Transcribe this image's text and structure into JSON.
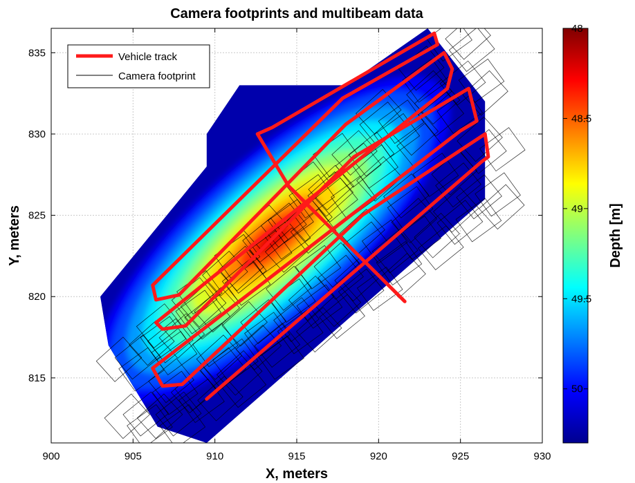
{
  "chart_data": {
    "type": "heatmap",
    "title": "Camera footprints and multibeam data",
    "xlabel": "X, meters",
    "ylabel": "Y, meters",
    "xlim": [
      900,
      930
    ],
    "ylim": [
      811,
      836.5
    ],
    "xticks": [
      900,
      905,
      910,
      915,
      920,
      925,
      930
    ],
    "yticks": [
      815,
      820,
      825,
      830,
      835
    ],
    "grid": true,
    "legend": {
      "position": "top-left",
      "entries": [
        "Vehicle track",
        "Camera footprint"
      ]
    },
    "colorbar": {
      "label": "Depth [m]",
      "range": [
        48,
        50.3
      ],
      "reversed": true,
      "ticks": [
        "48",
        "48.5",
        "49",
        "49.5",
        "50"
      ],
      "colormap": "jet"
    },
    "survey_area": {
      "outline": [
        [
          906.5,
          812
        ],
        [
          909.5,
          811
        ],
        [
          926.5,
          826
        ],
        [
          926.5,
          832
        ],
        [
          923,
          836.5
        ],
        [
          918,
          833
        ],
        [
          911.5,
          833
        ],
        [
          909.5,
          830
        ],
        [
          909.5,
          828
        ],
        [
          903,
          820
        ],
        [
          903.5,
          817
        ]
      ],
      "deepest_point": [
        913.5,
        823.5
      ],
      "deepest_depth": 48.05,
      "edge_depth": 50.2
    },
    "series": [
      {
        "name": "Vehicle track",
        "color": "#ff1a1a",
        "points": [
          [
            921.6,
            819.7
          ],
          [
            914.5,
            826.8
          ],
          [
            912.6,
            830.0
          ],
          [
            913.5,
            830.4
          ],
          [
            923.4,
            836.2
          ],
          [
            923.6,
            835.5
          ],
          [
            917.8,
            832.2
          ],
          [
            906.2,
            820.7
          ],
          [
            906.4,
            819.8
          ],
          [
            907.8,
            820.1
          ],
          [
            918.0,
            830.6
          ],
          [
            924.0,
            835.0
          ],
          [
            924.5,
            834.0
          ],
          [
            924.2,
            832.8
          ],
          [
            906.4,
            818.4
          ],
          [
            906.8,
            818.0
          ],
          [
            908.2,
            818.2
          ],
          [
            918.5,
            828.6
          ],
          [
            925.5,
            832.8
          ],
          [
            926.0,
            830.8
          ],
          [
            925.0,
            830.2
          ],
          [
            906.2,
            815.6
          ],
          [
            906.8,
            814.5
          ],
          [
            908.0,
            814.6
          ],
          [
            919.0,
            825.0
          ],
          [
            926.5,
            830.0
          ],
          [
            926.7,
            828.6
          ],
          [
            926.3,
            828.3
          ],
          [
            909.5,
            813.7
          ]
        ]
      }
    ],
    "footprints": {
      "name": "Camera footprint",
      "color": "#000000",
      "rows": [
        {
          "from": [
            906.5,
            817.5
          ],
          "to": [
            924.5,
            836.0
          ],
          "count": 9
        },
        {
          "from": [
            904.5,
            816.5
          ],
          "to": [
            925.5,
            833.5
          ],
          "count": 11
        },
        {
          "from": [
            905.0,
            813.0
          ],
          "to": [
            926.0,
            829.5
          ],
          "count": 10
        },
        {
          "from": [
            907.0,
            813.0
          ],
          "to": [
            926.5,
            826.5
          ],
          "count": 11
        }
      ]
    }
  }
}
